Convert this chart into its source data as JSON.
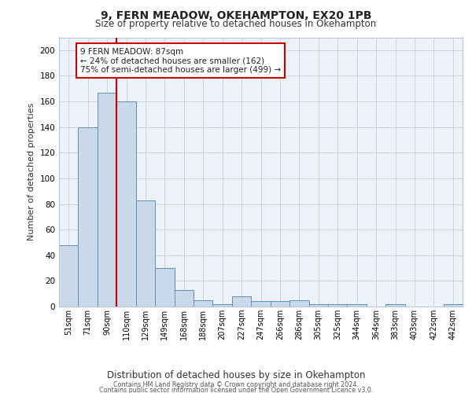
{
  "title1": "9, FERN MEADOW, OKEHAMPTON, EX20 1PB",
  "title2": "Size of property relative to detached houses in Okehampton",
  "xlabel": "Distribution of detached houses by size in Okehampton",
  "ylabel": "Number of detached properties",
  "categories": [
    "51sqm",
    "71sqm",
    "90sqm",
    "110sqm",
    "129sqm",
    "149sqm",
    "168sqm",
    "188sqm",
    "207sqm",
    "227sqm",
    "247sqm",
    "266sqm",
    "286sqm",
    "305sqm",
    "325sqm",
    "344sqm",
    "364sqm",
    "383sqm",
    "403sqm",
    "422sqm",
    "442sqm"
  ],
  "values": [
    48,
    140,
    167,
    160,
    83,
    30,
    13,
    5,
    2,
    8,
    4,
    4,
    5,
    2,
    2,
    2,
    0,
    2,
    0,
    0,
    2
  ],
  "bar_color": "#c9d9ea",
  "bar_edge_color": "#6090b8",
  "red_line_index": 2.5,
  "annotation_line1": "9 FERN MEADOW: 87sqm",
  "annotation_line2": "← 24% of detached houses are smaller (162)",
  "annotation_line3": "75% of semi-detached houses are larger (499) →",
  "annotation_box_facecolor": "#ffffff",
  "annotation_box_edgecolor": "#cc0000",
  "footer1": "Contains HM Land Registry data © Crown copyright and database right 2024.",
  "footer2": "Contains public sector information licensed under the Open Government Licence v3.0.",
  "plot_facecolor": "#edf2f8",
  "ylim_max": 210,
  "yticks": [
    0,
    20,
    40,
    60,
    80,
    100,
    120,
    140,
    160,
    180,
    200
  ]
}
